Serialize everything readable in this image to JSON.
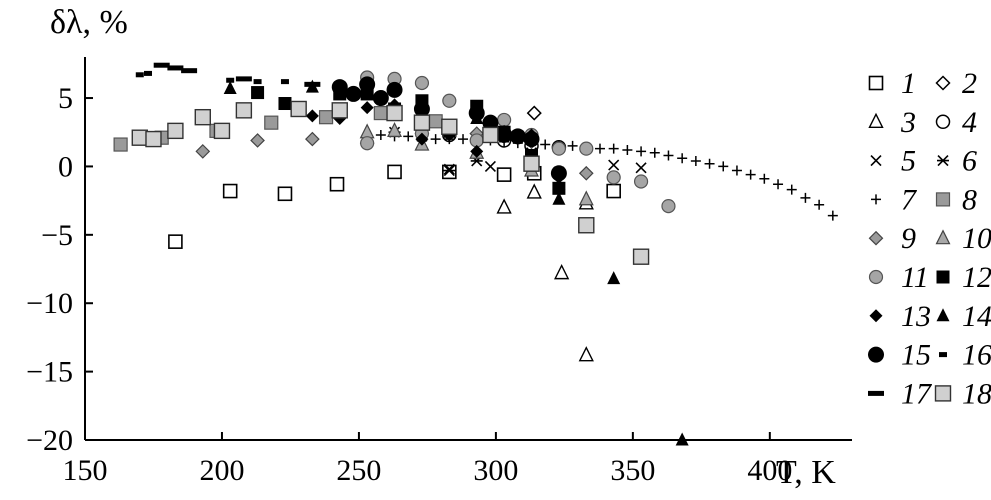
{
  "chart_data": {
    "type": "scatter",
    "ylabel": "δλ, %",
    "xlabel": "T, K",
    "xlim": [
      150,
      430
    ],
    "ylim": [
      -20,
      8
    ],
    "x_ticks": [
      150,
      200,
      250,
      300,
      350,
      400
    ],
    "y_ticks": [
      5,
      0,
      -5,
      -10,
      -15,
      -20
    ],
    "grid": false,
    "legend_position": "right",
    "series": [
      {
        "name": "1",
        "marker": "open-square",
        "points": [
          [
            183,
            -5.5
          ],
          [
            203,
            -1.8
          ],
          [
            223,
            -2.0
          ],
          [
            242,
            -1.3
          ],
          [
            263,
            -0.4
          ],
          [
            283,
            -0.4
          ],
          [
            303,
            -0.6
          ],
          [
            314,
            -0.5
          ],
          [
            343,
            -1.8
          ]
        ]
      },
      {
        "name": "2",
        "marker": "open-diamond",
        "points": [
          [
            314,
            3.9
          ]
        ]
      },
      {
        "name": "3",
        "marker": "open-triangle",
        "points": [
          [
            303,
            -3.0
          ],
          [
            314,
            -1.9
          ],
          [
            324,
            -7.8
          ],
          [
            333,
            -13.8
          ],
          [
            333,
            -2.7
          ]
        ]
      },
      {
        "name": "4",
        "marker": "open-circle",
        "points": [
          [
            283,
            2.3
          ],
          [
            303,
            1.9
          ],
          [
            313,
            1.5
          ],
          [
            323,
            1.4
          ]
        ]
      },
      {
        "name": "5",
        "marker": "cross",
        "points": [
          [
            273,
            2.2
          ],
          [
            283,
            -0.2
          ],
          [
            298,
            0.0
          ],
          [
            313,
            0.9
          ],
          [
            323,
            -0.4
          ],
          [
            343,
            0.1
          ],
          [
            353,
            -0.1
          ]
        ]
      },
      {
        "name": "6",
        "marker": "asterisk",
        "points": [
          [
            263,
            2.5
          ],
          [
            283,
            -0.3
          ],
          [
            293,
            0.4
          ],
          [
            313,
            1.0
          ],
          [
            323,
            1.4
          ]
        ]
      },
      {
        "name": "7",
        "marker": "plus",
        "points": [
          [
            258,
            2.3
          ],
          [
            263,
            2.2
          ],
          [
            268,
            2.2
          ],
          [
            273,
            2.1
          ],
          [
            278,
            2.0
          ],
          [
            283,
            2.0
          ],
          [
            288,
            2.0
          ],
          [
            293,
            1.9
          ],
          [
            298,
            1.9
          ],
          [
            303,
            1.8
          ],
          [
            308,
            1.7
          ],
          [
            313,
            1.7
          ],
          [
            318,
            1.6
          ],
          [
            323,
            1.5
          ],
          [
            328,
            1.5
          ],
          [
            333,
            1.4
          ],
          [
            338,
            1.3
          ],
          [
            343,
            1.3
          ],
          [
            348,
            1.2
          ],
          [
            353,
            1.1
          ],
          [
            358,
            1.0
          ],
          [
            363,
            0.8
          ],
          [
            368,
            0.6
          ],
          [
            373,
            0.4
          ],
          [
            378,
            0.2
          ],
          [
            383,
            0.0
          ],
          [
            388,
            -0.3
          ],
          [
            393,
            -0.6
          ],
          [
            398,
            -0.9
          ],
          [
            403,
            -1.3
          ],
          [
            408,
            -1.7
          ],
          [
            413,
            -2.3
          ],
          [
            418,
            -2.8
          ],
          [
            423,
            -3.6
          ]
        ]
      },
      {
        "name": "8",
        "marker": "gray-square",
        "points": [
          [
            163,
            1.6
          ],
          [
            178,
            2.1
          ],
          [
            198,
            2.6
          ],
          [
            218,
            3.2
          ],
          [
            238,
            3.6
          ],
          [
            258,
            3.9
          ],
          [
            278,
            3.3
          ],
          [
            298,
            2.9
          ]
        ]
      },
      {
        "name": "9",
        "marker": "gray-diamond",
        "points": [
          [
            193,
            1.1
          ],
          [
            213,
            1.9
          ],
          [
            233,
            2.0
          ],
          [
            253,
            1.7
          ],
          [
            273,
            2.4
          ],
          [
            293,
            2.4
          ],
          [
            313,
            1.8
          ],
          [
            333,
            -0.5
          ]
        ]
      },
      {
        "name": "10",
        "marker": "gray-triangle",
        "points": [
          [
            253,
            2.5
          ],
          [
            263,
            2.6
          ],
          [
            273,
            1.6
          ],
          [
            283,
            2.6
          ],
          [
            293,
            1.0
          ],
          [
            313,
            -0.3
          ],
          [
            333,
            -2.4
          ]
        ]
      },
      {
        "name": "11",
        "marker": "gray-circle",
        "points": [
          [
            253,
            6.5
          ],
          [
            263,
            6.4
          ],
          [
            273,
            6.1
          ],
          [
            283,
            4.8
          ],
          [
            293,
            3.9
          ],
          [
            303,
            3.4
          ],
          [
            313,
            2.3
          ],
          [
            323,
            1.3
          ],
          [
            333,
            1.3
          ],
          [
            343,
            -0.8
          ],
          [
            353,
            -1.1
          ],
          [
            363,
            -2.9
          ],
          [
            253,
            1.7
          ],
          [
            273,
            2.4
          ],
          [
            293,
            1.9
          ],
          [
            303,
            2.5
          ]
        ]
      },
      {
        "name": "12",
        "marker": "black-square",
        "points": [
          [
            213,
            5.4
          ],
          [
            223,
            4.6
          ],
          [
            243,
            5.3
          ],
          [
            253,
            5.3
          ],
          [
            263,
            4.2
          ],
          [
            273,
            4.8
          ],
          [
            283,
            2.8
          ],
          [
            293,
            4.4
          ],
          [
            303,
            2.5
          ],
          [
            313,
            0.8
          ],
          [
            323,
            -1.6
          ]
        ]
      },
      {
        "name": "13",
        "marker": "black-diamond",
        "points": [
          [
            233,
            3.7
          ],
          [
            243,
            3.5
          ],
          [
            253,
            4.3
          ],
          [
            263,
            4.5
          ],
          [
            273,
            2.0
          ],
          [
            283,
            2.3
          ],
          [
            293,
            1.1
          ],
          [
            303,
            2.3
          ],
          [
            313,
            2.3
          ],
          [
            323,
            -0.8
          ],
          [
            323,
            -1.7
          ]
        ]
      },
      {
        "name": "14",
        "marker": "black-triangle",
        "points": [
          [
            203,
            5.7
          ],
          [
            233,
            5.8
          ],
          [
            253,
            5.5
          ],
          [
            263,
            4.4
          ],
          [
            273,
            4.6
          ],
          [
            283,
            2.5
          ],
          [
            293,
            3.5
          ],
          [
            303,
            2.5
          ],
          [
            323,
            -2.4
          ],
          [
            343,
            -8.2
          ],
          [
            368,
            -20.0
          ]
        ]
      },
      {
        "name": "15",
        "marker": "black-circle",
        "points": [
          [
            243,
            5.8
          ],
          [
            248,
            5.3
          ],
          [
            253,
            6.0
          ],
          [
            258,
            5.0
          ],
          [
            263,
            5.6
          ],
          [
            273,
            4.2
          ],
          [
            283,
            2.8
          ],
          [
            293,
            3.9
          ],
          [
            298,
            3.2
          ],
          [
            303,
            2.3
          ],
          [
            308,
            2.2
          ],
          [
            313,
            2.0
          ],
          [
            323,
            -0.5
          ]
        ]
      },
      {
        "name": "16",
        "marker": "short-dash",
        "points": [
          [
            170,
            6.7
          ],
          [
            173,
            6.8
          ],
          [
            203,
            6.3
          ],
          [
            213,
            6.2
          ],
          [
            223,
            6.2
          ]
        ]
      },
      {
        "name": "17",
        "marker": "long-dash",
        "points": [
          [
            178,
            7.4
          ],
          [
            183,
            7.2
          ],
          [
            188,
            7.0
          ],
          [
            208,
            6.4
          ],
          [
            233,
            6.0
          ]
        ]
      },
      {
        "name": "18",
        "marker": "light-square",
        "points": [
          [
            170,
            2.1
          ],
          [
            175,
            2.0
          ],
          [
            183,
            2.6
          ],
          [
            193,
            3.6
          ],
          [
            200,
            2.6
          ],
          [
            208,
            4.1
          ],
          [
            228,
            4.2
          ],
          [
            243,
            4.1
          ],
          [
            263,
            3.9
          ],
          [
            273,
            3.2
          ],
          [
            283,
            2.9
          ],
          [
            298,
            2.3
          ],
          [
            313,
            0.2
          ],
          [
            333,
            -4.3
          ],
          [
            353,
            -6.6
          ]
        ]
      }
    ]
  }
}
